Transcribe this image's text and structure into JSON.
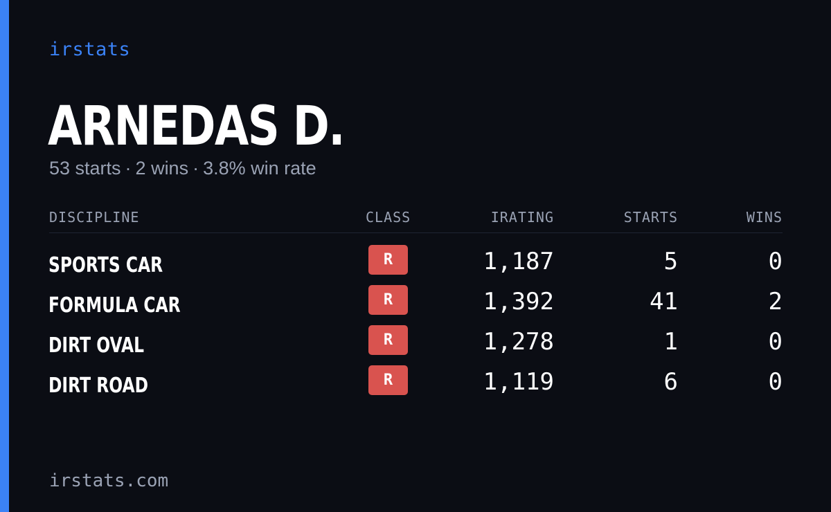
{
  "brand": "irstats",
  "driver": {
    "name": "ARNEDAS D.",
    "starts_text": "53 starts",
    "wins_text": "2 wins",
    "win_rate_text": "3.8% win rate",
    "separator": "·"
  },
  "table": {
    "headers": {
      "discipline": "DISCIPLINE",
      "class": "CLASS",
      "irating": "IRATING",
      "starts": "STARTS",
      "wins": "WINS"
    },
    "rows": [
      {
        "discipline": "SPORTS CAR",
        "class": "R",
        "irating": "1,187",
        "starts": "5",
        "wins": "0"
      },
      {
        "discipline": "FORMULA CAR",
        "class": "R",
        "irating": "1,392",
        "starts": "41",
        "wins": "2"
      },
      {
        "discipline": "DIRT OVAL",
        "class": "R",
        "irating": "1,278",
        "starts": "1",
        "wins": "0"
      },
      {
        "discipline": "DIRT ROAD",
        "class": "R",
        "irating": "1,119",
        "starts": "6",
        "wins": "0"
      }
    ]
  },
  "footer": "irstats.com",
  "colors": {
    "background": "#0b0d14",
    "accent": "#3b82f6",
    "class_badge": "#d9534f",
    "muted_text": "#9aa2b4"
  }
}
